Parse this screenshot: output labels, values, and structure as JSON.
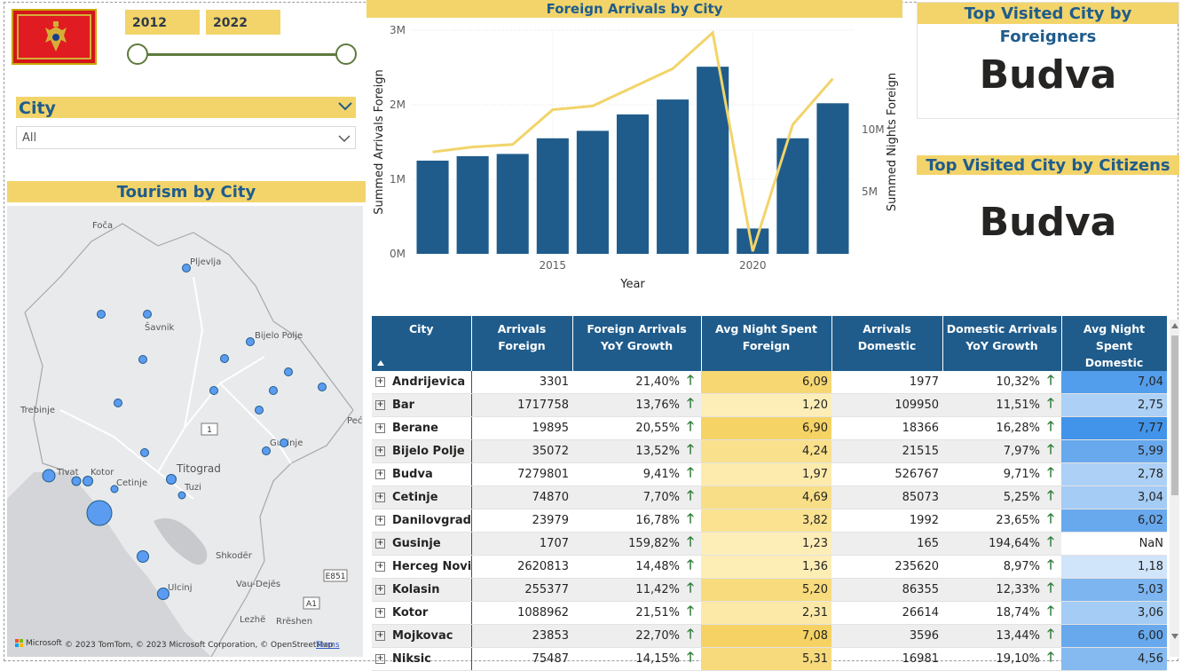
{
  "slicer_years": {
    "start": "2012",
    "end": "2022"
  },
  "city_slicer": {
    "title": "City",
    "selected": "All"
  },
  "map_section": {
    "title": "Tourism by City",
    "place_labels": [
      "Foča",
      "Pljevlja",
      "Bijelo Polje",
      "Šavnik",
      "Trebinje",
      "Tivat",
      "Kotor",
      "Cetinje",
      "Titograd",
      "Tuzi",
      "Gusinje",
      "Shkodër",
      "Ulcinj",
      "Vau-Dejës",
      "Lezhë",
      "Rrëshen",
      "Peć"
    ],
    "road_labels": [
      "1",
      "E851",
      "A1"
    ],
    "attribution": "© 2023 TomTom, © 2023 Microsoft Corporation, © OpenStreetMap",
    "terms": "Terms",
    "bing": "Microsoft Bing"
  },
  "chart_title": "Foreign Arrivals by City",
  "chart_data": {
    "type": "bar",
    "x": [
      2012,
      2013,
      2014,
      2015,
      2016,
      2017,
      2018,
      2019,
      2020,
      2021,
      2022
    ],
    "series": [
      {
        "name": "Summed Arrivals Foreign",
        "type": "bar",
        "axis": "left",
        "color": "#1f5c8c",
        "values": [
          1.25,
          1.31,
          1.34,
          1.55,
          1.65,
          1.87,
          2.07,
          2.51,
          0.34,
          1.55,
          2.02
        ]
      },
      {
        "name": "Summed Nights Foreign",
        "type": "line",
        "axis": "right",
        "color": "#f2d46a",
        "values": [
          8.2,
          8.6,
          8.8,
          11.6,
          11.9,
          13.4,
          14.9,
          17.8,
          0.2,
          10.4,
          14.1
        ]
      }
    ],
    "xlabel": "Year",
    "ylabel": "Summed Arrivals Foreign",
    "y2label": "Summed Nights Foreign",
    "ylim": [
      0,
      3
    ],
    "y2lim": [
      0,
      18
    ],
    "yticks": [
      "0M",
      "1M",
      "2M",
      "3M"
    ],
    "y2ticks": [
      "5M",
      "10M"
    ],
    "xticks": [
      "2015",
      "2020"
    ]
  },
  "card_foreign": {
    "title": "Top Visited City by Foreigners",
    "value": "Budva"
  },
  "card_citizens": {
    "title": "Top Visited City by Citizens",
    "value": "Budva"
  },
  "table": {
    "headers": [
      "City",
      "Arrivals Foreign",
      "Foreign Arrivals YoY Growth",
      "Avg Night Spent Foreign",
      "Arrivals Domestic",
      "Domestic Arrivals YoY Growth",
      "Avg Night Spent Domestic"
    ],
    "rows": [
      {
        "city": "Andrijevica",
        "af": "3301",
        "afg": "21,40%",
        "anf": "6,09",
        "ad": "1977",
        "adg": "10,32%",
        "and": "7,04",
        "f_level": 0.78,
        "d_level": 0.82
      },
      {
        "city": "Bar",
        "af": "1717758",
        "afg": "13,76%",
        "anf": "1,20",
        "ad": "109950",
        "adg": "11,51%",
        "and": "2,75",
        "f_level": 0.15,
        "d_level": 0.3
      },
      {
        "city": "Berane",
        "af": "19895",
        "afg": "20,55%",
        "anf": "6,90",
        "ad": "18366",
        "adg": "16,28%",
        "and": "7,77",
        "f_level": 0.9,
        "d_level": 0.92
      },
      {
        "city": "Bijelo Polje",
        "af": "35072",
        "afg": "13,52%",
        "anf": "4,24",
        "ad": "21515",
        "adg": "7,97%",
        "and": "5,99",
        "f_level": 0.55,
        "d_level": 0.7
      },
      {
        "city": "Budva",
        "af": "7279801",
        "afg": "9,41%",
        "anf": "1,97",
        "ad": "526767",
        "adg": "9,71%",
        "and": "2,78",
        "f_level": 0.25,
        "d_level": 0.3
      },
      {
        "city": "Cetinje",
        "af": "74870",
        "afg": "7,70%",
        "anf": "4,69",
        "ad": "85073",
        "adg": "5,25%",
        "and": "3,04",
        "f_level": 0.6,
        "d_level": 0.35
      },
      {
        "city": "Danilovgrad",
        "af": "23979",
        "afg": "16,78%",
        "anf": "3,82",
        "ad": "1992",
        "adg": "23,65%",
        "and": "6,02",
        "f_level": 0.5,
        "d_level": 0.7
      },
      {
        "city": "Gusinje",
        "af": "1707",
        "afg": "159,82%",
        "anf": "1,23",
        "ad": "165",
        "adg": "194,64%",
        "and": "NaN",
        "f_level": 0.15,
        "d_level": -1
      },
      {
        "city": "Herceg Novi",
        "af": "2620813",
        "afg": "14,48%",
        "anf": "1,36",
        "ad": "235620",
        "adg": "8,97%",
        "and": "1,18",
        "f_level": 0.17,
        "d_level": 0.1
      },
      {
        "city": "Kolasin",
        "af": "255377",
        "afg": "11,42%",
        "anf": "5,20",
        "ad": "86355",
        "adg": "12,33%",
        "and": "5,03",
        "f_level": 0.68,
        "d_level": 0.58
      },
      {
        "city": "Kotor",
        "af": "1088962",
        "afg": "21,51%",
        "anf": "2,31",
        "ad": "26614",
        "adg": "18,74%",
        "and": "3,06",
        "f_level": 0.3,
        "d_level": 0.35
      },
      {
        "city": "Mojkovac",
        "af": "23853",
        "afg": "22,70%",
        "anf": "7,08",
        "ad": "3596",
        "adg": "13,44%",
        "and": "6,00",
        "f_level": 0.92,
        "d_level": 0.7
      },
      {
        "city": "Niksic",
        "af": "75487",
        "afg": "14,15%",
        "anf": "5,31",
        "ad": "16981",
        "adg": "19,10%",
        "and": "4,56",
        "f_level": 0.69,
        "d_level": 0.53
      }
    ]
  }
}
